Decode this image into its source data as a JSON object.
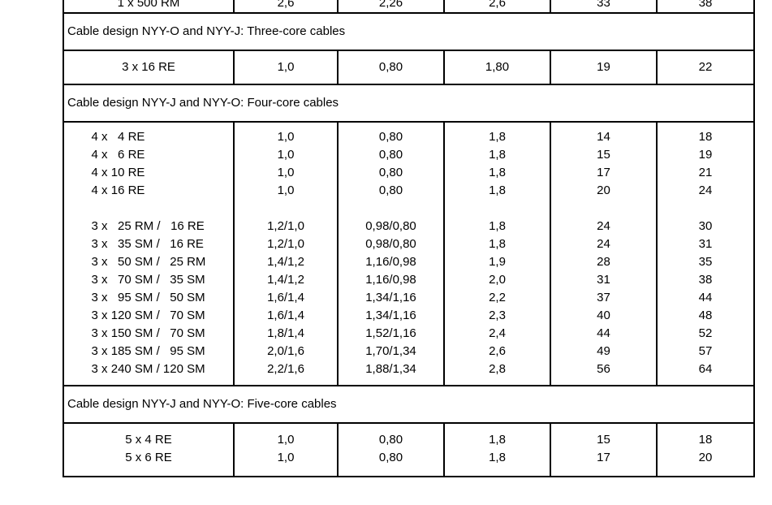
{
  "page": {
    "background_color": "#ffffff",
    "text_color": "#000000",
    "border_color": "#000000"
  },
  "table": {
    "clipped_top_row": {
      "cells": [
        "1 x 500 RM",
        "2,6",
        "2,26",
        "2,6",
        "33",
        "38"
      ]
    },
    "sections": [
      {
        "header": "Cable design NYY-O and NYY-J: Three-core cables",
        "columns": [
          [
            "3 x 16 RE"
          ],
          [
            "1,0"
          ],
          [
            "0,80"
          ],
          [
            "1,80"
          ],
          [
            "19"
          ],
          [
            "22"
          ]
        ]
      },
      {
        "header": "Cable design NYY-J and NYY-O: Four-core cables",
        "columns": [
          [
            "4 x   4 RE",
            "4 x   6 RE",
            "4 x 10 RE",
            "4 x 16 RE",
            "",
            "3 x   25 RM /   16 RE",
            "3 x   35 SM /   16 RE",
            "3 x   50 SM /   25 RM",
            "3 x   70 SM /   35 SM",
            "3 x   95 SM /   50 SM",
            "3 x 120 SM /   70 SM",
            "3 x 150 SM /   70 SM",
            "3 x 185 SM /   95 SM",
            "3 x 240 SM / 120 SM"
          ],
          [
            "1,0",
            "1,0",
            "1,0",
            "1,0",
            "",
            "1,2/1,0",
            "1,2/1,0",
            "1,4/1,2",
            "1,4/1,2",
            "1,6/1,4",
            "1,6/1,4",
            "1,8/1,4",
            "2,0/1,6",
            "2,2/1,6"
          ],
          [
            "0,80",
            "0,80",
            "0,80",
            "0,80",
            "",
            "0,98/0,80",
            "0,98/0,80",
            "1,16/0,98",
            "1,16/0,98",
            "1,34/1,16",
            "1,34/1,16",
            "1,52/1,16",
            "1,70/1,34",
            "1,88/1,34"
          ],
          [
            "1,8",
            "1,8",
            "1,8",
            "1,8",
            "",
            "1,8",
            "1,8",
            "1,9",
            "2,0",
            "2,2",
            "2,3",
            "2,4",
            "2,6",
            "2,8"
          ],
          [
            "14",
            "15",
            "17",
            "20",
            "",
            "24",
            "24",
            "28",
            "31",
            "37",
            "40",
            "44",
            "49",
            "56"
          ],
          [
            "18",
            "19",
            "21",
            "24",
            "",
            "30",
            "31",
            "35",
            "38",
            "44",
            "48",
            "52",
            "57",
            "64"
          ]
        ]
      },
      {
        "header": "Cable design NYY-J and NYY-O: Five-core cables",
        "columns": [
          [
            "5 x 4 RE",
            "5 x 6 RE"
          ],
          [
            "1,0",
            "1,0"
          ],
          [
            "0,80",
            "0,80"
          ],
          [
            "1,8",
            "1,8"
          ],
          [
            "15",
            "17"
          ],
          [
            "18",
            "20"
          ]
        ]
      }
    ]
  }
}
